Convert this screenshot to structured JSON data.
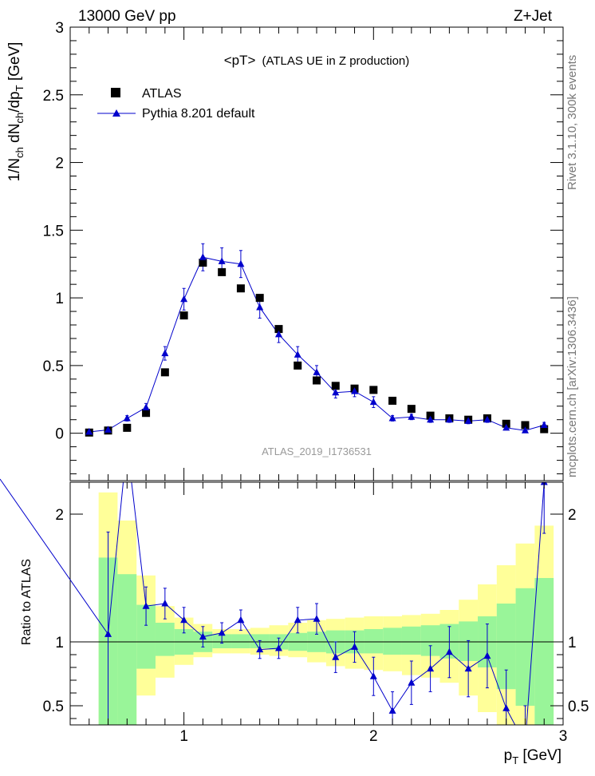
{
  "header": {
    "left": "13000 GeV pp",
    "right": "Z+Jet"
  },
  "side": {
    "top": "Rivet 3.1.10,  300k events",
    "bottom": "mcplots.cern.ch [arXiv:1306.3436]"
  },
  "chart_data": [
    {
      "type": "scatter",
      "title": "<pT>",
      "subtitle": "(ATLAS UE in Z production)",
      "watermark": "ATLAS_2019_I1736531",
      "ylabel": "1/N_ch dN_ch/dp_T [GeV]",
      "xlim": [
        0.4,
        3.0
      ],
      "ylim": [
        -0.35,
        3.0
      ],
      "yticks": [
        0,
        0.5,
        1,
        1.5,
        2,
        2.5,
        3
      ],
      "ytick_labels": [
        "0",
        "0.5",
        "1",
        "1.5",
        "2",
        "2.5",
        "3"
      ],
      "legend_position": "top-left",
      "series": [
        {
          "name": "ATLAS",
          "marker": "square",
          "color": "#000000",
          "x": [
            0.5,
            0.6,
            0.7,
            0.8,
            0.9,
            1.0,
            1.1,
            1.2,
            1.3,
            1.4,
            1.5,
            1.6,
            1.7,
            1.8,
            1.9,
            2.0,
            2.1,
            2.2,
            2.3,
            2.4,
            2.5,
            2.6,
            2.7,
            2.8,
            2.9
          ],
          "y": [
            0.005,
            0.02,
            0.04,
            0.15,
            0.45,
            0.87,
            1.26,
            1.19,
            1.07,
            1.0,
            0.77,
            0.5,
            0.39,
            0.35,
            0.33,
            0.32,
            0.24,
            0.18,
            0.13,
            0.11,
            0.1,
            0.11,
            0.07,
            0.06,
            0.03
          ]
        },
        {
          "name": "Pythia 8.201 default",
          "marker": "triangle",
          "color": "#0000cc",
          "x": [
            0.5,
            0.6,
            0.7,
            0.8,
            0.9,
            1.0,
            1.1,
            1.2,
            1.3,
            1.4,
            1.5,
            1.6,
            1.7,
            1.8,
            1.9,
            2.0,
            2.1,
            2.2,
            2.3,
            2.4,
            2.5,
            2.6,
            2.7,
            2.8,
            2.9
          ],
          "y": [
            0.01,
            0.025,
            0.11,
            0.19,
            0.59,
            0.99,
            1.3,
            1.27,
            1.25,
            0.93,
            0.73,
            0.58,
            0.45,
            0.3,
            0.31,
            0.23,
            0.11,
            0.12,
            0.1,
            0.1,
            0.09,
            0.1,
            0.04,
            0.02,
            0.06
          ],
          "yerr": [
            0.01,
            0.01,
            0.02,
            0.03,
            0.05,
            0.08,
            0.1,
            0.1,
            0.1,
            0.08,
            0.06,
            0.06,
            0.05,
            0.04,
            0.04,
            0.04,
            0.02,
            0.02,
            0.02,
            0.02,
            0.02,
            0.02,
            0.01,
            0.01,
            0.02
          ]
        }
      ]
    },
    {
      "type": "line",
      "ylabel": "Ratio to ATLAS",
      "xlabel": "p_T [GeV]",
      "xlim": [
        0.4,
        3.0
      ],
      "ylim": [
        0.35,
        2.25
      ],
      "xticks": [
        1,
        2,
        3
      ],
      "xtick_labels": [
        "1",
        "2",
        "3"
      ],
      "yticks": [
        0.5,
        1,
        2
      ],
      "ytick_labels": [
        "0.5",
        "1",
        "2"
      ],
      "reference_line": 1,
      "bands": {
        "bins": [
          0.55,
          0.65,
          0.75,
          0.85,
          0.95,
          1.05,
          1.15,
          1.25,
          1.35,
          1.45,
          1.55,
          1.65,
          1.75,
          1.85,
          1.95,
          2.05,
          2.15,
          2.25,
          2.35,
          2.45,
          2.55,
          2.65,
          2.75,
          2.85,
          2.95
        ],
        "green_lo": [
          0.35,
          0.35,
          0.79,
          0.89,
          0.9,
          0.92,
          0.95,
          0.95,
          0.95,
          0.94,
          0.93,
          0.92,
          0.91,
          0.91,
          0.91,
          0.9,
          0.9,
          0.89,
          0.87,
          0.85,
          0.8,
          0.63,
          0.5,
          0.35
        ],
        "green_hi": [
          1.66,
          1.53,
          1.29,
          1.15,
          1.1,
          1.08,
          1.06,
          1.06,
          1.06,
          1.06,
          1.07,
          1.08,
          1.09,
          1.09,
          1.1,
          1.11,
          1.12,
          1.13,
          1.14,
          1.16,
          1.2,
          1.3,
          1.42,
          1.5
        ],
        "yellow_lo": [
          0.35,
          0.35,
          0.58,
          0.72,
          0.82,
          0.88,
          0.91,
          0.91,
          0.9,
          0.89,
          0.88,
          0.84,
          0.81,
          0.79,
          0.78,
          0.77,
          0.74,
          0.72,
          0.68,
          0.58,
          0.45,
          0.35,
          0.35,
          0.35
        ],
        "yellow_hi": [
          2.17,
          1.95,
          1.52,
          1.28,
          1.19,
          1.14,
          1.1,
          1.1,
          1.11,
          1.13,
          1.15,
          1.17,
          1.18,
          1.19,
          1.2,
          1.2,
          1.21,
          1.22,
          1.25,
          1.33,
          1.45,
          1.6,
          1.77,
          1.91
        ],
        "green_color": "#99f599",
        "yellow_color": "#ffff99"
      },
      "series": [
        {
          "name": "Pythia 8.201 default",
          "color": "#0000cc",
          "x": [
            0.6,
            0.7,
            0.8,
            0.9,
            1.0,
            1.1,
            1.2,
            1.3,
            1.4,
            1.5,
            1.6,
            1.7,
            1.8,
            1.9,
            2.0,
            2.1,
            2.2,
            2.3,
            2.4,
            2.5,
            2.6,
            2.7,
            2.8,
            2.9
          ],
          "y": [
            1.06,
            2.55,
            1.28,
            1.3,
            1.17,
            1.04,
            1.07,
            1.17,
            0.94,
            0.95,
            1.17,
            1.18,
            0.88,
            0.96,
            0.73,
            0.46,
            0.68,
            0.79,
            0.92,
            0.79,
            0.89,
            0.48,
            0.2,
            2.25
          ],
          "yerr": [
            0.8,
            0.25,
            0.15,
            0.12,
            0.1,
            0.08,
            0.08,
            0.08,
            0.07,
            0.08,
            0.1,
            0.12,
            0.12,
            0.12,
            0.15,
            0.15,
            0.17,
            0.18,
            0.2,
            0.22,
            0.25,
            0.3,
            0.3,
            0.4
          ]
        }
      ]
    }
  ]
}
